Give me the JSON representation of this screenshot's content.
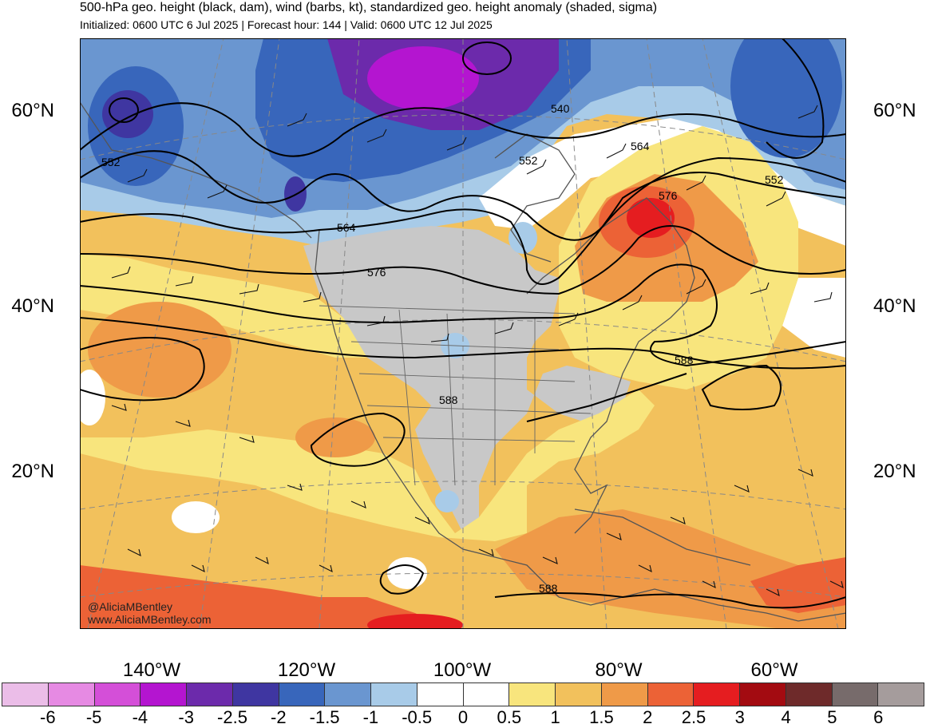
{
  "header": {
    "title": "500-hPa geo. height (black, dam), wind (barbs, kt), standardized geo. height anomaly (shaded, sigma)",
    "subtitle": "Initialized: 0600 UTC 6 Jul 2025 | Forecast hour: 144 | Valid: 0600 UTC 12 Jul 2025"
  },
  "map": {
    "lat_labels": [
      "60°N",
      "40°N",
      "20°N"
    ],
    "lon_labels": [
      "140°W",
      "120°W",
      "100°W",
      "80°W",
      "60°W"
    ],
    "contour_labels": [
      "540",
      "552",
      "552",
      "564",
      "552",
      "576",
      "564",
      "576",
      "588",
      "588",
      "588"
    ],
    "credit_handle": "@AliciaMBentley",
    "credit_site": "www.AliciaMBentley.com"
  },
  "colorbar": {
    "labels": [
      "-6",
      "-5",
      "-4",
      "-3",
      "-2.5",
      "-2",
      "-1.5",
      "-1",
      "-0.5",
      "0",
      "0.5",
      "1",
      "1.5",
      "2",
      "2.5",
      "3",
      "4",
      "5",
      "6"
    ],
    "colors": [
      "#ebbde8",
      "#e68ae3",
      "#d44fd8",
      "#b415d0",
      "#6c2aab",
      "#3f36a1",
      "#3866bb",
      "#6a96d0",
      "#a8cbe8",
      "#ffffff",
      "#ffffff",
      "#f8e57d",
      "#f2c15c",
      "#ef9a48",
      "#ec6236",
      "#e51d20",
      "#a30b11",
      "#6e2a2a",
      "#776b6b",
      "#a59c9c"
    ]
  }
}
